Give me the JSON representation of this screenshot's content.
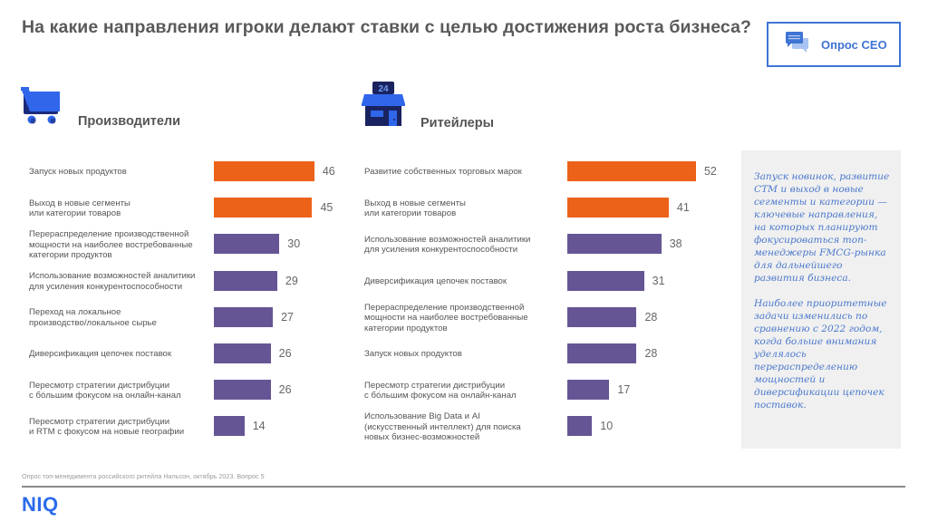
{
  "header": {
    "title": "На какие направления игроки делают ставки с целью достижения роста бизнеса?",
    "badge": {
      "icon": "chat-bubbles-icon",
      "label": "Опрос CEO"
    }
  },
  "colors": {
    "highlight": "#ec6219",
    "regular": "#665595",
    "accent": "#3f74d4",
    "note_text": "#4a78cc"
  },
  "sections": {
    "left": {
      "icon": "shopping-cart-icon",
      "title": "Производители"
    },
    "right": {
      "icon": "store-24-icon",
      "title": "Ритейлеры"
    }
  },
  "chart_data": [
    {
      "type": "bar",
      "orientation": "horizontal",
      "title": "Производители",
      "xlabel": "",
      "ylabel": "",
      "xlim": [
        0,
        55
      ],
      "grid": false,
      "categories": [
        "Запуск новых продуктов",
        "Выход в новые сегменты\nили категории товаров",
        "Перераспределение производственной\nмощности на наиболее востребованные\nкатегории продуктов",
        "Использование возможностей аналитики\nдля усиления конкурентоспособности",
        "Переход на локальное\nпроизводство/локальное сырье",
        "Диверсификация цепочек поставок",
        "Пересмотр стратегии дистрибуции\nс бóльшим фокусом на онлайн-канал",
        "Пересмотр стратегии дистрибуции\nи RTM с фокусом на новые географии"
      ],
      "values": [
        46,
        45,
        30,
        29,
        27,
        26,
        26,
        14
      ],
      "highlighted": [
        true,
        true,
        false,
        false,
        false,
        false,
        false,
        false
      ]
    },
    {
      "type": "bar",
      "orientation": "horizontal",
      "title": "Ритейлеры",
      "xlabel": "",
      "ylabel": "",
      "xlim": [
        0,
        55
      ],
      "grid": false,
      "categories": [
        "Развитие собственных торговых марок",
        "Выход в новые сегменты\nили категории товаров",
        "Использование возможностей аналитики\nдля усиления конкурентоспособности",
        "Диверсификация цепочек поставок",
        "Перераспределение производственной\nмощности на наиболее востребованные\nкатегории продуктов",
        "Запуск новых продуктов",
        "Пересмотр стратегии дистрибуции\nс бóльшим фокусом на онлайн-канал",
        "Использование Big Data и AI\n(искусственный интеллект) для поиска\nновых бизнес-возможностей"
      ],
      "values": [
        52,
        41,
        38,
        31,
        28,
        28,
        17,
        10
      ],
      "highlighted": [
        true,
        true,
        false,
        false,
        false,
        false,
        false,
        false
      ]
    }
  ],
  "note": {
    "paragraphs": [
      "Запуск новинок, развитие СТМ и выход в новые сегменты и категории — ключевые направления, на которых планируют фокусироваться топ-менеджеры FMCG-рынка для дальнейшего развития бизнеса.",
      "Наиболее приоритетные задачи изменились по сравнению с 2022 годом, когда больше внимания уделялось перераспределению мощностей и диверсификации цепочек поставок."
    ]
  },
  "footer": {
    "source": "Опрос топ-менеджмента российского ритейла Нильсон, октябрь 2023. Вопрос 5",
    "logo": "NIQ"
  }
}
